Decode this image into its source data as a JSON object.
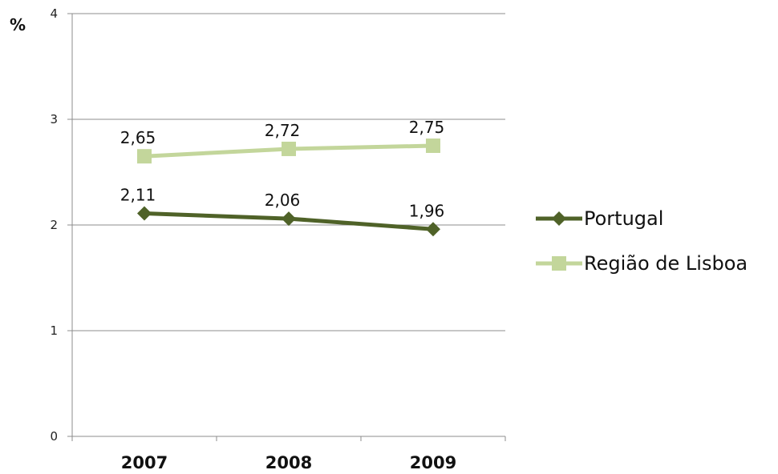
{
  "chart_data": {
    "type": "line",
    "categories": [
      "2007",
      "2008",
      "2009"
    ],
    "ylabel": "%",
    "ylim": [
      0,
      4
    ],
    "yticks": [
      "0",
      "1",
      "2",
      "3",
      "4"
    ],
    "grid": true,
    "legend_position": "right",
    "series": [
      {
        "name": "Portugal",
        "values": [
          2.11,
          2.06,
          1.96
        ],
        "labels": [
          "2,11",
          "2,06",
          "1,96"
        ],
        "color": "#4f6228",
        "marker": "diamond"
      },
      {
        "name": "Região de Lisboa",
        "values": [
          2.65,
          2.72,
          2.75
        ],
        "labels": [
          "2,65",
          "2,72",
          "2,75"
        ],
        "color": "#c3d69b",
        "marker": "square"
      }
    ]
  }
}
